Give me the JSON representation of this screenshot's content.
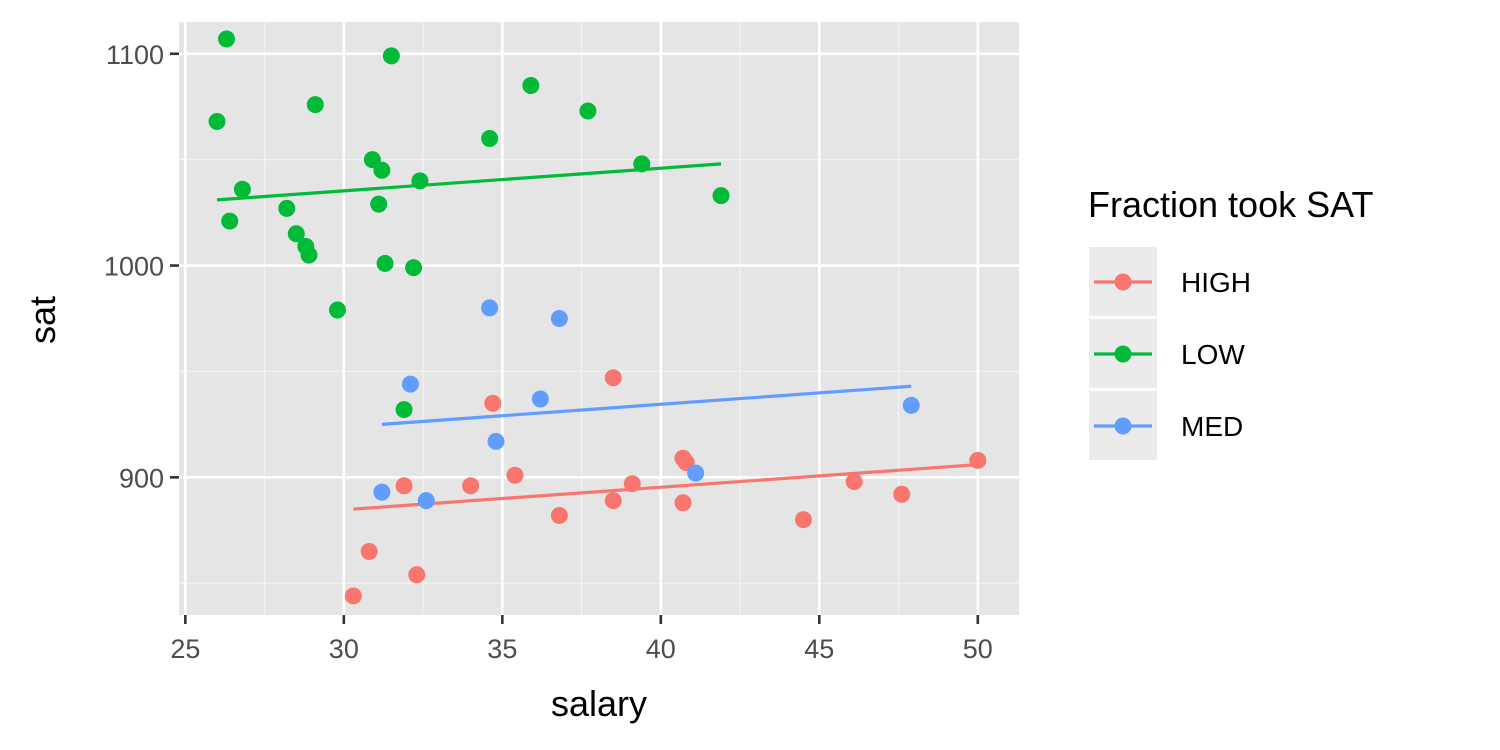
{
  "chart_data": {
    "type": "scatter",
    "xlabel": "salary",
    "ylabel": "sat",
    "xlim": [
      24.8,
      51.3
    ],
    "ylim": [
      835,
      1115
    ],
    "x_ticks": [
      25,
      30,
      35,
      40,
      45,
      50
    ],
    "x_tick_labels": [
      "25",
      "30",
      "35",
      "40",
      "45",
      "50"
    ],
    "y_ticks": [
      900,
      1000,
      1100
    ],
    "y_tick_labels": [
      "900",
      "1000",
      "1100"
    ],
    "x_minor_ticks": [
      27.5,
      32.5,
      37.5,
      42.5,
      47.5
    ],
    "y_minor_ticks": [
      850,
      950,
      1050
    ],
    "grid": true,
    "panel_background": "#e5e5e5",
    "legend": {
      "title": "Fraction took SAT",
      "position": "right"
    },
    "series": [
      {
        "name": "HIGH",
        "color": "#F8766D",
        "points": [
          [
            30.3,
            844
          ],
          [
            30.8,
            865
          ],
          [
            31.9,
            896
          ],
          [
            32.3,
            854
          ],
          [
            34.0,
            896
          ],
          [
            34.7,
            935
          ],
          [
            35.4,
            901
          ],
          [
            36.8,
            882
          ],
          [
            38.5,
            947
          ],
          [
            38.5,
            889
          ],
          [
            39.1,
            897
          ],
          [
            40.7,
            909
          ],
          [
            40.8,
            907
          ],
          [
            40.7,
            888
          ],
          [
            44.5,
            880
          ],
          [
            46.1,
            898
          ],
          [
            47.6,
            892
          ],
          [
            50.0,
            908
          ]
        ],
        "fit_line": [
          [
            30.3,
            885
          ],
          [
            50.0,
            906
          ]
        ]
      },
      {
        "name": "LOW",
        "color": "#00BA38",
        "points": [
          [
            26.0,
            1068
          ],
          [
            26.3,
            1107
          ],
          [
            26.4,
            1021
          ],
          [
            26.8,
            1036
          ],
          [
            28.2,
            1027
          ],
          [
            28.5,
            1015
          ],
          [
            28.8,
            1009
          ],
          [
            28.9,
            1005
          ],
          [
            29.1,
            1076
          ],
          [
            29.8,
            979
          ],
          [
            30.9,
            1050
          ],
          [
            31.1,
            1029
          ],
          [
            31.2,
            1045
          ],
          [
            31.3,
            1001
          ],
          [
            31.5,
            1099
          ],
          [
            32.2,
            999
          ],
          [
            32.4,
            1040
          ],
          [
            34.6,
            1060
          ],
          [
            35.9,
            1085
          ],
          [
            37.7,
            1073
          ],
          [
            39.4,
            1048
          ],
          [
            41.9,
            1033
          ],
          [
            31.9,
            932
          ]
        ],
        "fit_line": [
          [
            26.0,
            1031
          ],
          [
            41.9,
            1048
          ]
        ]
      },
      {
        "name": "MED",
        "color": "#619CFF",
        "points": [
          [
            31.2,
            893
          ],
          [
            32.1,
            944
          ],
          [
            32.6,
            889
          ],
          [
            34.6,
            980
          ],
          [
            34.8,
            917
          ],
          [
            36.2,
            937
          ],
          [
            36.8,
            975
          ],
          [
            41.1,
            902
          ],
          [
            47.9,
            934
          ]
        ],
        "fit_line": [
          [
            31.2,
            925
          ],
          [
            47.9,
            943
          ]
        ]
      }
    ]
  }
}
